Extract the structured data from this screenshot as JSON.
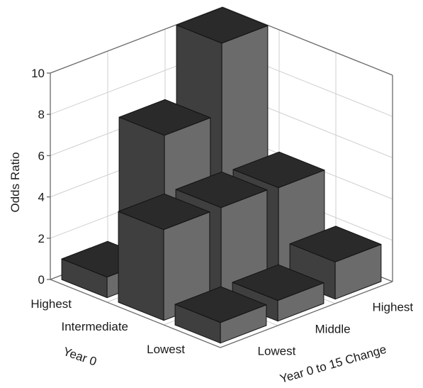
{
  "chart_data": {
    "type": "bar",
    "variant": "3d-grouped",
    "title": "",
    "zlabel": "Odds Ratio",
    "zlim": [
      0,
      10
    ],
    "z_ticks": [
      "0",
      "2",
      "4",
      "6",
      "8",
      "10"
    ],
    "x_axis": {
      "label": "Year 0",
      "categories": [
        "Highest",
        "Intermediate",
        "Lowest"
      ]
    },
    "y_axis": {
      "label": "Year 0 to 15 Change",
      "categories": [
        "Lowest",
        "Middle",
        "Highest"
      ]
    },
    "grid": true,
    "bars": [
      {
        "year0": "Highest",
        "change": "Lowest",
        "value": 1.0
      },
      {
        "year0": "Highest",
        "change": "Middle",
        "value": 6.8
      },
      {
        "year0": "Highest",
        "change": "Highest",
        "value": 10.2
      },
      {
        "year0": "Intermediate",
        "change": "Lowest",
        "value": 4.4
      },
      {
        "year0": "Intermediate",
        "change": "Middle",
        "value": 4.4
      },
      {
        "year0": "Intermediate",
        "change": "Highest",
        "value": 4.3
      },
      {
        "year0": "Lowest",
        "change": "Lowest",
        "value": 1.0
      },
      {
        "year0": "Lowest",
        "change": "Middle",
        "value": 1.0
      },
      {
        "year0": "Lowest",
        "change": "Highest",
        "value": 1.8
      }
    ],
    "colors": {
      "bar_top": "#2a2a2a",
      "bar_left": "#3f3f3f",
      "bar_right": "#6b6b6b"
    }
  }
}
